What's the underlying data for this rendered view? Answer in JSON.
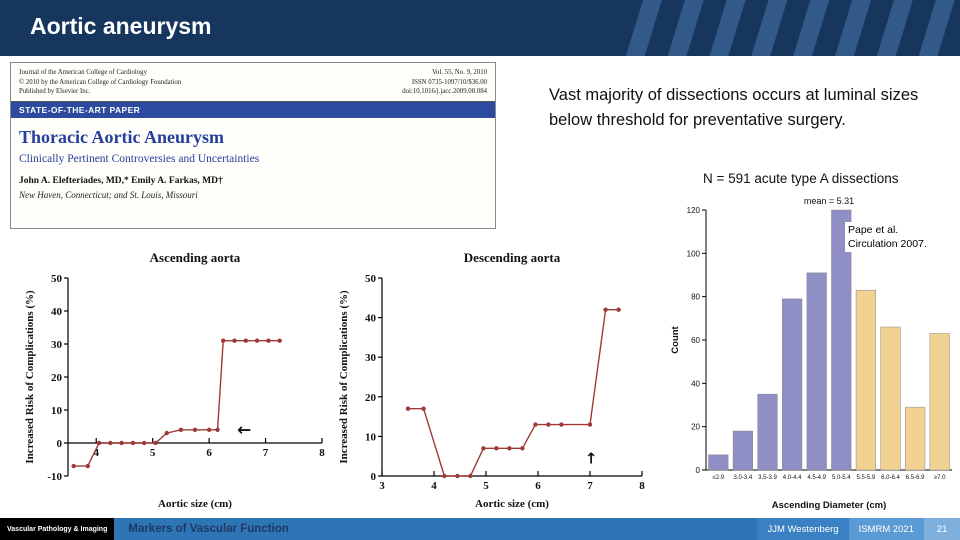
{
  "slide": {
    "title": "Aortic aneurysm",
    "main_text": "Vast majority of dissections occurs at luminal sizes below threshold for preventative surgery.",
    "histogram_caption": "N = 591 acute type A dissections",
    "citation_line1": "Pape et al.",
    "citation_line2": "Circulation 2007."
  },
  "paper": {
    "head_left": [
      "Journal of the American College of Cardiology",
      "© 2010 by the American College of Cardiology Foundation",
      "Published by Elsevier Inc."
    ],
    "head_right": [
      "Vol. 55, No. 9, 2010",
      "ISSN 0735-1097/10/$36.00",
      "doi:10.1016/j.jacc.2009.08.084"
    ],
    "banner": "STATE-OF-THE-ART PAPER",
    "title": "Thoracic Aortic Aneurysm",
    "subtitle": "Clinically Pertinent Controversies and Uncertainties",
    "authors": "John A. Elefteriades, MD,* Emily A. Farkas, MD†",
    "affiliation": "New Haven, Connecticut; and St. Louis, Missouri"
  },
  "footer": {
    "left": "Vascular Pathology & Imaging",
    "center": "Markers of Vascular Function",
    "author": "JJM Westenberg",
    "conference": "ISMRM 2021",
    "page": "21"
  },
  "chart_data": [
    {
      "type": "line",
      "title": "Ascending aorta",
      "xlabel": "Aortic size (cm)",
      "ylabel": "Increased Risk of Complications (%)",
      "xlim": [
        3.5,
        8
      ],
      "ylim": [
        -10,
        50
      ],
      "xticks": [
        4,
        5,
        6,
        7,
        8
      ],
      "yticks": [
        -10,
        0,
        10,
        20,
        30,
        40,
        50
      ],
      "x_axis_at": 0,
      "color": "#9e3b38",
      "x": [
        3.6,
        3.85,
        4.05,
        4.25,
        4.45,
        4.65,
        4.85,
        5.05,
        5.25,
        5.5,
        5.75,
        6.0,
        6.15,
        6.25,
        6.45,
        6.65,
        6.85,
        7.05,
        7.25
      ],
      "y": [
        -7,
        -7,
        0,
        0,
        0,
        0,
        0,
        0,
        3,
        4,
        4,
        4,
        4,
        31,
        31,
        31,
        31,
        31,
        31
      ],
      "annotations": [
        {
          "text": "←",
          "x": 6.62,
          "y": 2.3,
          "size": 17
        }
      ]
    },
    {
      "type": "line",
      "title": "Descending aorta",
      "xlabel": "Aortic size (cm)",
      "ylabel": "Increased Risk of Complications (%)",
      "xlim": [
        3,
        8
      ],
      "ylim": [
        0,
        50
      ],
      "xticks": [
        3,
        4,
        5,
        6,
        7,
        8
      ],
      "yticks": [
        0,
        10,
        20,
        30,
        40,
        50
      ],
      "x_axis_at": 0,
      "color": "#9e3b38",
      "x": [
        3.5,
        3.8,
        4.2,
        4.45,
        4.7,
        4.95,
        5.2,
        5.45,
        5.7,
        5.95,
        6.2,
        6.45,
        7.0,
        7.3,
        7.55
      ],
      "y": [
        17,
        17,
        0,
        0,
        0,
        7,
        7,
        7,
        7,
        13,
        13,
        13,
        13,
        42,
        42
      ],
      "annotations": [
        {
          "text": "↑",
          "x": 7.02,
          "y": 3.2,
          "size": 15
        }
      ]
    },
    {
      "type": "bar",
      "title": "mean = 5.31",
      "xlabel": "Ascending Diameter (cm)",
      "ylabel": "Count",
      "ylim": [
        0,
        120
      ],
      "yticks": [
        0,
        20,
        40,
        60,
        80,
        100,
        120
      ],
      "categories": [
        "≤2.9",
        "3.0-3.4",
        "3.5-3.9",
        "4.0-4.4",
        "4.5-4.9",
        "5.0-5.4",
        "5.5-5.9",
        "6.0-6.4",
        "6.5-6.9",
        "≥7.0"
      ],
      "values": [
        7,
        18,
        35,
        79,
        91,
        120,
        83,
        66,
        29,
        63
      ],
      "bar_colors": [
        "#908fc5",
        "#908fc5",
        "#908fc5",
        "#908fc5",
        "#908fc5",
        "#908fc5",
        "#f1d293",
        "#f1d293",
        "#f1d293",
        "#f1d293"
      ]
    }
  ]
}
